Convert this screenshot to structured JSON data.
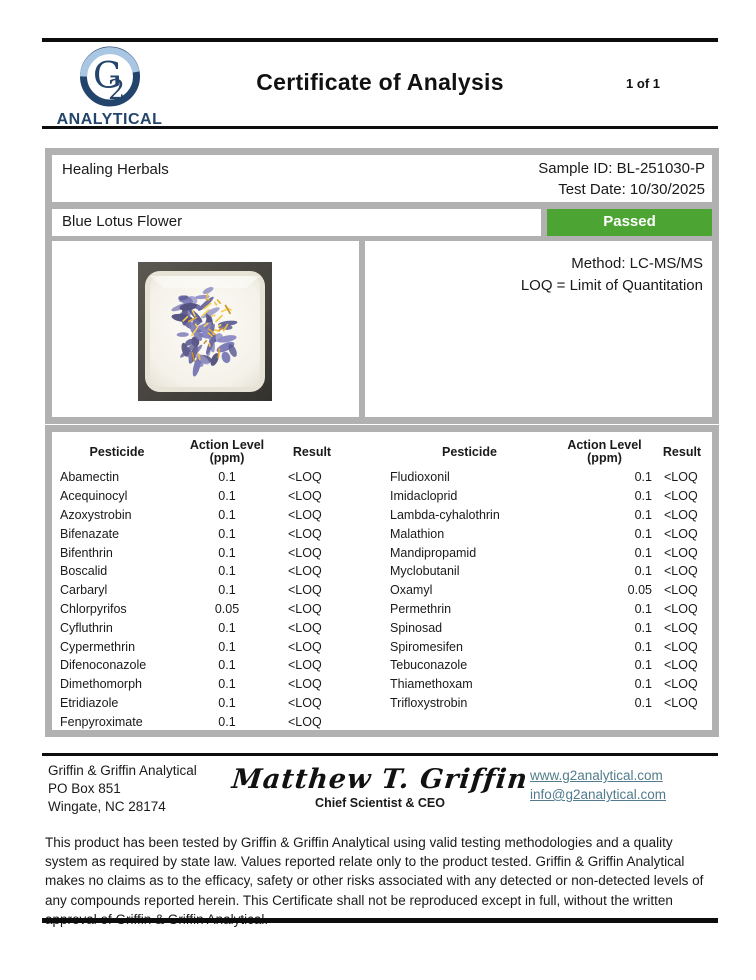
{
  "colors": {
    "bar_black": "#0d0d0d",
    "gray_panel": "#b1b1b1",
    "passed_green": "#4ca433",
    "link_teal": "#527c8d",
    "logo_navy": "#24456b",
    "logo_light_blue": "#a9c6e2"
  },
  "header": {
    "logo_mark": "G2",
    "logo_name": "ANALYTICAL",
    "title": "Certificate of Analysis",
    "page_count": "1 of 1"
  },
  "sample": {
    "client_name": "Healing Herbals",
    "sample_id_label": "Sample ID: BL-251030-P",
    "test_date_label": "Test Date: 10/30/2025",
    "product_name": "Blue Lotus Flower",
    "status": "Passed"
  },
  "method": {
    "method_line": "Method: LC-MS/MS",
    "loq_line": "LOQ = Limit of Quantitation"
  },
  "results_table": {
    "columns": {
      "pesticide": "Pesticide",
      "action_level_line1": "Action Level",
      "action_level_line2": "(ppm)",
      "result": "Result"
    },
    "left_rows": [
      {
        "pesticide": "Abamectin",
        "action_level": "0.1",
        "result": "<LOQ"
      },
      {
        "pesticide": "Acequinocyl",
        "action_level": "0.1",
        "result": "<LOQ"
      },
      {
        "pesticide": "Azoxystrobin",
        "action_level": "0.1",
        "result": "<LOQ"
      },
      {
        "pesticide": "Bifenazate",
        "action_level": "0.1",
        "result": "<LOQ"
      },
      {
        "pesticide": "Bifenthrin",
        "action_level": "0.1",
        "result": "<LOQ"
      },
      {
        "pesticide": "Boscalid",
        "action_level": "0.1",
        "result": "<LOQ"
      },
      {
        "pesticide": "Carbaryl",
        "action_level": "0.1",
        "result": "<LOQ"
      },
      {
        "pesticide": "Chlorpyrifos",
        "action_level": "0.05",
        "result": "<LOQ"
      },
      {
        "pesticide": "Cyfluthrin",
        "action_level": "0.1",
        "result": "<LOQ"
      },
      {
        "pesticide": "Cypermethrin",
        "action_level": "0.1",
        "result": "<LOQ"
      },
      {
        "pesticide": "Difenoconazole",
        "action_level": "0.1",
        "result": "<LOQ"
      },
      {
        "pesticide": "Dimethomorph",
        "action_level": "0.1",
        "result": "<LOQ"
      },
      {
        "pesticide": "Etridiazole",
        "action_level": "0.1",
        "result": "<LOQ"
      },
      {
        "pesticide": "Fenpyroximate",
        "action_level": "0.1",
        "result": "<LOQ"
      }
    ],
    "right_rows": [
      {
        "pesticide": "Fludioxonil",
        "action_level": "0.1",
        "result": "<LOQ"
      },
      {
        "pesticide": "Imidacloprid",
        "action_level": "0.1",
        "result": "<LOQ"
      },
      {
        "pesticide": "Lambda-cyhalothrin",
        "action_level": "0.1",
        "result": "<LOQ"
      },
      {
        "pesticide": "Malathion",
        "action_level": "0.1",
        "result": "<LOQ"
      },
      {
        "pesticide": "Mandipropamid",
        "action_level": "0.1",
        "result": "<LOQ"
      },
      {
        "pesticide": "Myclobutanil",
        "action_level": "0.1",
        "result": "<LOQ"
      },
      {
        "pesticide": "Oxamyl",
        "action_level": "0.05",
        "result": "<LOQ"
      },
      {
        "pesticide": "Permethrin",
        "action_level": "0.1",
        "result": "<LOQ"
      },
      {
        "pesticide": "Spinosad",
        "action_level": "0.1",
        "result": "<LOQ"
      },
      {
        "pesticide": "Spiromesifen",
        "action_level": "0.1",
        "result": "<LOQ"
      },
      {
        "pesticide": "Tebuconazole",
        "action_level": "0.1",
        "result": "<LOQ"
      },
      {
        "pesticide": "Thiamethoxam",
        "action_level": "0.1",
        "result": "<LOQ"
      },
      {
        "pesticide": "Trifloxystrobin",
        "action_level": "0.1",
        "result": "<LOQ"
      }
    ]
  },
  "footer": {
    "company": "Griffin & Griffin Analytical",
    "address_line1": "PO Box 851",
    "address_line2": "Wingate, NC 28174",
    "signature": "Matthew T. Griffin",
    "signer_title": "Chief Scientist & CEO",
    "website": "www.g2analytical.com",
    "email": "info@g2analytical.com"
  },
  "disclaimer": "This product has been tested by Griffin & Griffin Analytical using valid testing methodologies and a quality system as required by state law. Values reported relate only to the product tested. Griffin & Griffin Analytical makes no claims as to the efficacy, safety or other risks associated with any detected or non-detected levels of any compounds reported herein. This Certificate shall not be reproduced except in full, without the written approval of Griffin & Griffin Analytical."
}
